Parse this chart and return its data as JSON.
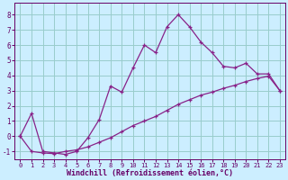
{
  "xlabel": "Windchill (Refroidissement éolien,°C)",
  "line1_x": [
    0,
    1,
    2,
    3,
    4,
    5,
    6,
    7,
    8,
    9,
    10,
    11,
    12,
    13,
    14,
    15,
    16,
    17,
    18,
    19,
    20,
    21,
    22,
    23
  ],
  "line1_y": [
    0.0,
    1.5,
    -1.0,
    -1.1,
    -1.2,
    -1.0,
    -0.1,
    1.1,
    3.3,
    2.9,
    4.5,
    6.0,
    5.5,
    7.2,
    8.0,
    7.2,
    6.2,
    5.5,
    4.6,
    4.5,
    4.8,
    4.1,
    4.1,
    3.0
  ],
  "line2_x": [
    0,
    1,
    2,
    3,
    4,
    5,
    6,
    7,
    8,
    9,
    10,
    11,
    12,
    13,
    14,
    15,
    16,
    17,
    18,
    19,
    20,
    21,
    22,
    23
  ],
  "line2_y": [
    0.0,
    -1.0,
    -1.1,
    -1.15,
    -1.0,
    -0.9,
    -0.7,
    -0.4,
    -0.1,
    0.3,
    0.7,
    1.0,
    1.3,
    1.7,
    2.1,
    2.4,
    2.7,
    2.9,
    3.15,
    3.35,
    3.6,
    3.8,
    3.95,
    3.0
  ],
  "line_color": "#882288",
  "bg_color": "#cceeff",
  "grid_color": "#99cccc",
  "axis_color": "#660066",
  "text_color": "#660066",
  "ylim": [
    -1.5,
    8.8
  ],
  "xlim": [
    -0.5,
    23.5
  ],
  "yticks": [
    -1,
    0,
    1,
    2,
    3,
    4,
    5,
    6,
    7,
    8
  ],
  "xticks": [
    0,
    1,
    2,
    3,
    4,
    5,
    6,
    7,
    8,
    9,
    10,
    11,
    12,
    13,
    14,
    15,
    16,
    17,
    18,
    19,
    20,
    21,
    22,
    23
  ]
}
